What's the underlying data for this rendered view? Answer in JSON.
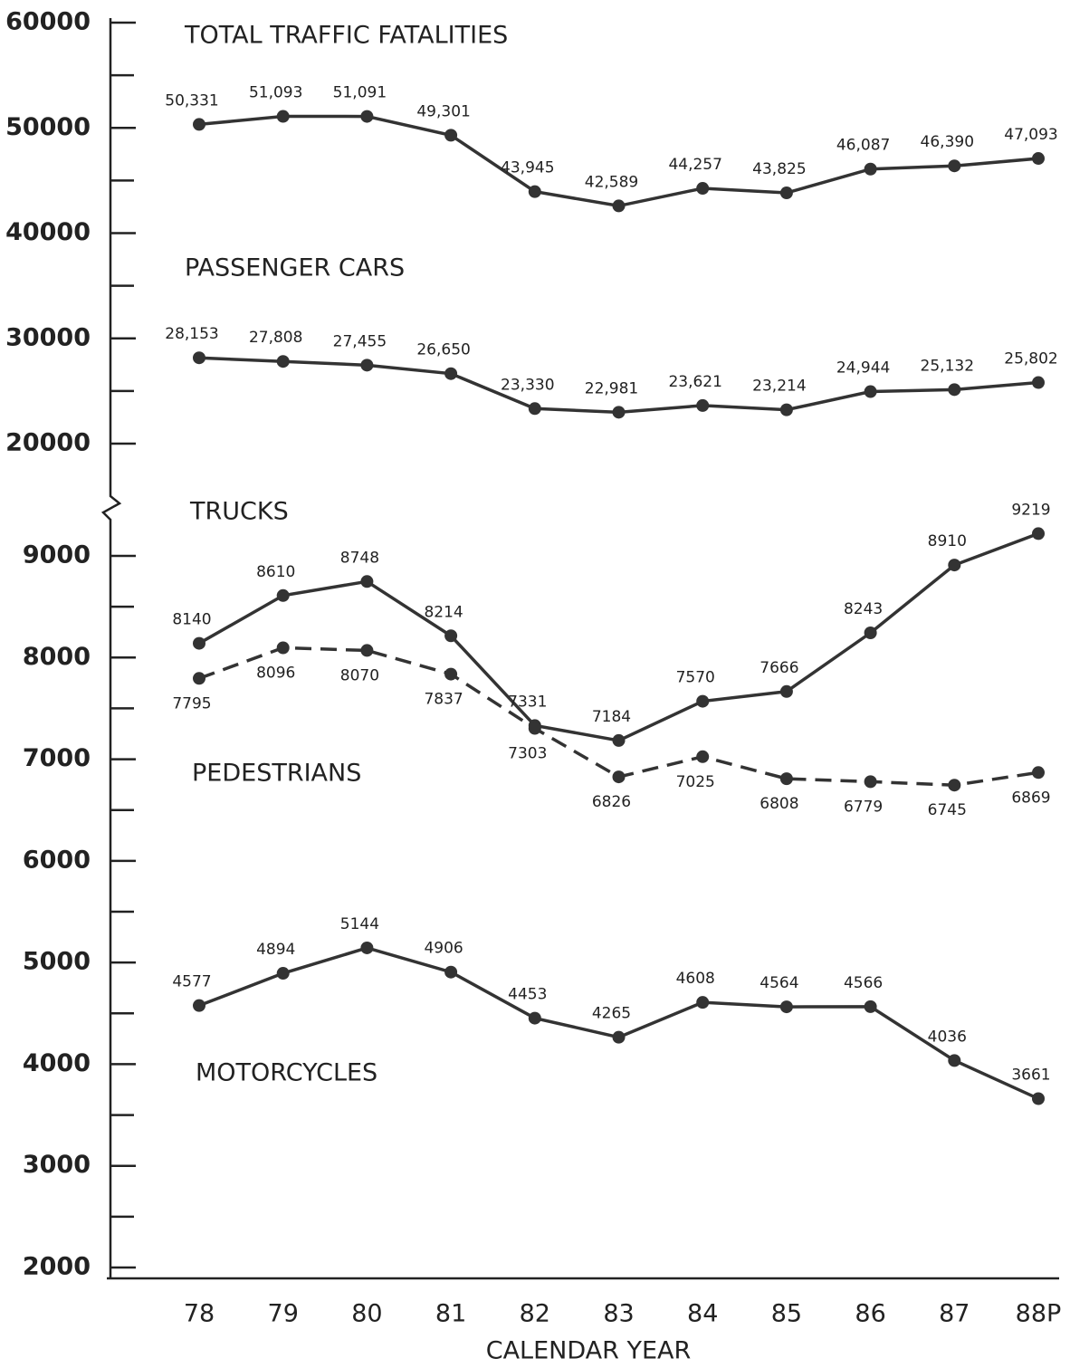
{
  "chart_data": {
    "type": "line",
    "xlabel": "CALENDAR YEAR",
    "categories": [
      "78",
      "79",
      "80",
      "81",
      "82",
      "83",
      "84",
      "85",
      "86",
      "87",
      "88P"
    ],
    "color": "#333333",
    "panels": [
      {
        "ylim": [
          20000,
          60000
        ],
        "yticks": [
          20000,
          30000,
          40000,
          50000,
          60000
        ],
        "minor_yticks": [
          25000,
          35000,
          45000,
          55000
        ],
        "series": [
          {
            "name": "TOTAL TRAFFIC FATALITIES",
            "values": [
              50331,
              51093,
              51091,
              49301,
              43945,
              42589,
              44257,
              43825,
              46087,
              46390,
              47093
            ],
            "value_labels": [
              "50,331",
              "51,093",
              "51,091",
              "49,301",
              "43,945",
              "42,589",
              "44,257",
              "43,825",
              "46,087",
              "46,390",
              "47,093"
            ]
          },
          {
            "name": "PASSENGER CARS",
            "values": [
              28153,
              27808,
              27455,
              26650,
              23330,
              22981,
              23621,
              23214,
              24944,
              25132,
              25802
            ],
            "value_labels": [
              "28,153",
              "27,808",
              "27,455",
              "26,650",
              "23,330",
              "22,981",
              "23,621",
              "23,214",
              "24,944",
              "25,132",
              "25,802"
            ]
          }
        ]
      },
      {
        "ylim": [
          2000,
          9000
        ],
        "yticks": [
          2000,
          3000,
          4000,
          5000,
          6000,
          7000,
          8000,
          9000
        ],
        "minor_yticks": [
          2500,
          3500,
          4500,
          5500,
          6500,
          7500,
          8500
        ],
        "series": [
          {
            "name": "TRUCKS",
            "values": [
              8140,
              8610,
              8748,
              8214,
              7331,
              7184,
              7570,
              7666,
              8243,
              8910,
              9219
            ]
          },
          {
            "name": "PEDESTRIANS",
            "dashed": true,
            "values": [
              7795,
              8096,
              8070,
              7837,
              7303,
              6826,
              7025,
              6808,
              6779,
              6745,
              6869
            ]
          },
          {
            "name": "MOTORCYCLES",
            "values": [
              4577,
              4894,
              5144,
              4906,
              4453,
              4265,
              4608,
              4564,
              4566,
              4036,
              3661
            ]
          }
        ]
      }
    ]
  }
}
